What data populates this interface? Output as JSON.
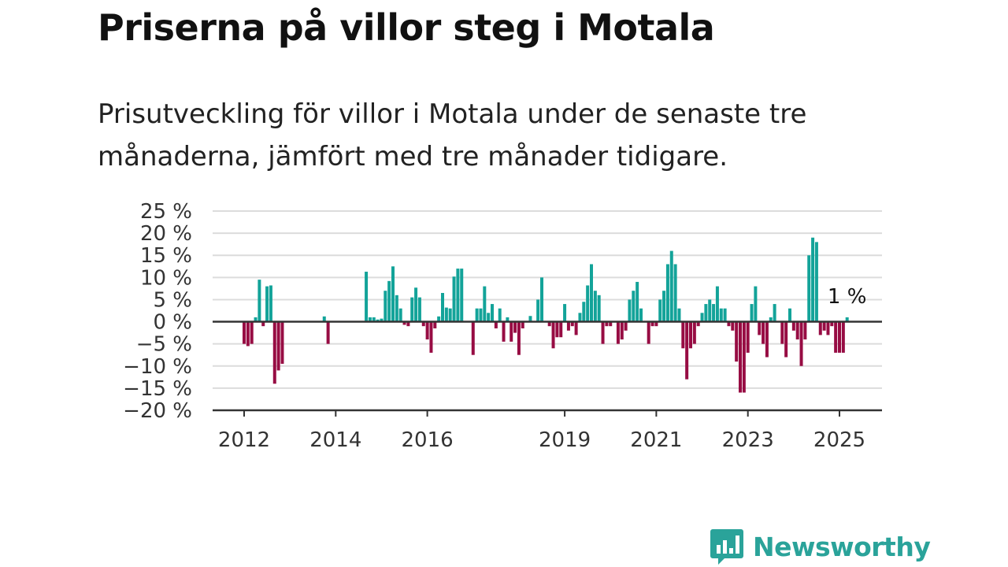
{
  "title": "Priserna på villor steg i Motala",
  "subtitle": "Prisutveckling för villor i Motala under de senaste tre månaderna, jämfört med tre månader tidigare.",
  "brand": {
    "name": "Newsworthy",
    "color": "#2aa39a",
    "icon": "bar-chart-speech-bubble-icon"
  },
  "chart_data": {
    "type": "bar",
    "title": "",
    "xlabel": "",
    "ylabel": "",
    "unit": "%",
    "ylim": [
      -20,
      25
    ],
    "grid": true,
    "colors": {
      "positive": "#13a399",
      "negative": "#970c43"
    },
    "y_ticks": [
      {
        "value": 25,
        "label": "25 %"
      },
      {
        "value": 20,
        "label": "20 %"
      },
      {
        "value": 15,
        "label": "15 %"
      },
      {
        "value": 10,
        "label": "10 %"
      },
      {
        "value": 5,
        "label": "5 %"
      },
      {
        "value": 0,
        "label": "0 %"
      },
      {
        "value": -5,
        "label": "−5 %"
      },
      {
        "value": -10,
        "label": "−10 %"
      },
      {
        "value": -15,
        "label": "−15 %"
      },
      {
        "value": -20,
        "label": "−20 %"
      }
    ],
    "x_ticks": [
      {
        "value": "2012-01",
        "label": "2012"
      },
      {
        "value": "2014-01",
        "label": "2014"
      },
      {
        "value": "2016-01",
        "label": "2016"
      },
      {
        "value": "2019-01",
        "label": "2019"
      },
      {
        "value": "2021-01",
        "label": "2021"
      },
      {
        "value": "2023-01",
        "label": "2023"
      },
      {
        "value": "2025-01",
        "label": "2025"
      }
    ],
    "annotation": {
      "label": "1 %",
      "x": "2025-03",
      "value": 1
    },
    "series": [
      {
        "values": [
          [
            "2012-01",
            -5
          ],
          [
            "2012-02",
            -5.5
          ],
          [
            "2012-03",
            -5
          ],
          [
            "2012-04",
            1
          ],
          [
            "2012-05",
            9.5
          ],
          [
            "2012-06",
            -1
          ],
          [
            "2012-07",
            8
          ],
          [
            "2012-08",
            8.2
          ],
          [
            "2012-09",
            -14
          ],
          [
            "2012-10",
            -11
          ],
          [
            "2012-11",
            -9.5
          ],
          [
            "2013-10",
            1.2
          ],
          [
            "2013-11",
            -5
          ],
          [
            "2014-09",
            11.3
          ],
          [
            "2014-10",
            1
          ],
          [
            "2014-11",
            1
          ],
          [
            "2014-12",
            0.5
          ],
          [
            "2015-01",
            0.7
          ],
          [
            "2015-02",
            7
          ],
          [
            "2015-03",
            9.2
          ],
          [
            "2015-04",
            12.5
          ],
          [
            "2015-05",
            6
          ],
          [
            "2015-06",
            3
          ],
          [
            "2015-07",
            -0.7
          ],
          [
            "2015-08",
            -1
          ],
          [
            "2015-09",
            5.5
          ],
          [
            "2015-10",
            7.7
          ],
          [
            "2015-11",
            5.5
          ],
          [
            "2015-12",
            -1
          ],
          [
            "2016-01",
            -4
          ],
          [
            "2016-02",
            -7
          ],
          [
            "2016-03",
            -1.5
          ],
          [
            "2016-04",
            1.2
          ],
          [
            "2016-05",
            6.5
          ],
          [
            "2016-06",
            3.2
          ],
          [
            "2016-07",
            3
          ],
          [
            "2016-08",
            10.2
          ],
          [
            "2016-09",
            12
          ],
          [
            "2016-10",
            12
          ],
          [
            "2017-01",
            -7.5
          ],
          [
            "2017-02",
            3
          ],
          [
            "2017-03",
            3
          ],
          [
            "2017-04",
            8
          ],
          [
            "2017-05",
            2
          ],
          [
            "2017-06",
            4
          ],
          [
            "2017-07",
            -1.5
          ],
          [
            "2017-08",
            3
          ],
          [
            "2017-09",
            -4.5
          ],
          [
            "2017-10",
            1
          ],
          [
            "2017-11",
            -4.5
          ],
          [
            "2017-12",
            -2.5
          ],
          [
            "2018-01",
            -7.5
          ],
          [
            "2018-02",
            -1.5
          ],
          [
            "2018-04",
            1.3
          ],
          [
            "2018-06",
            5
          ],
          [
            "2018-07",
            10
          ],
          [
            "2018-09",
            -1
          ],
          [
            "2018-10",
            -6
          ],
          [
            "2018-11",
            -3.5
          ],
          [
            "2018-12",
            -3.5
          ],
          [
            "2019-01",
            4
          ],
          [
            "2019-02",
            -2
          ],
          [
            "2019-03",
            -1
          ],
          [
            "2019-04",
            -3
          ],
          [
            "2019-05",
            2
          ],
          [
            "2019-06",
            4.5
          ],
          [
            "2019-07",
            8.2
          ],
          [
            "2019-08",
            13
          ],
          [
            "2019-09",
            7
          ],
          [
            "2019-10",
            6
          ],
          [
            "2019-11",
            -5
          ],
          [
            "2019-12",
            -1
          ],
          [
            "2020-01",
            -1
          ],
          [
            "2020-03",
            -5
          ],
          [
            "2020-04",
            -4
          ],
          [
            "2020-05",
            -2
          ],
          [
            "2020-06",
            5
          ],
          [
            "2020-07",
            7
          ],
          [
            "2020-08",
            9
          ],
          [
            "2020-09",
            3
          ],
          [
            "2020-11",
            -5
          ],
          [
            "2020-12",
            -1
          ],
          [
            "2021-01",
            -1
          ],
          [
            "2021-02",
            5
          ],
          [
            "2021-03",
            7
          ],
          [
            "2021-04",
            13
          ],
          [
            "2021-05",
            16
          ],
          [
            "2021-06",
            13
          ],
          [
            "2021-07",
            3
          ],
          [
            "2021-08",
            -6
          ],
          [
            "2021-09",
            -13
          ],
          [
            "2021-10",
            -6
          ],
          [
            "2021-11",
            -5
          ],
          [
            "2021-12",
            -1
          ],
          [
            "2022-01",
            2
          ],
          [
            "2022-02",
            4
          ],
          [
            "2022-03",
            5
          ],
          [
            "2022-04",
            4
          ],
          [
            "2022-05",
            8
          ],
          [
            "2022-06",
            3
          ],
          [
            "2022-07",
            3
          ],
          [
            "2022-08",
            -1
          ],
          [
            "2022-09",
            -2
          ],
          [
            "2022-10",
            -9
          ],
          [
            "2022-11",
            -16
          ],
          [
            "2022-12",
            -16
          ],
          [
            "2023-01",
            -7
          ],
          [
            "2023-02",
            4
          ],
          [
            "2023-03",
            8
          ],
          [
            "2023-04",
            -3
          ],
          [
            "2023-05",
            -5
          ],
          [
            "2023-06",
            -8
          ],
          [
            "2023-07",
            1
          ],
          [
            "2023-08",
            4
          ],
          [
            "2023-10",
            -5
          ],
          [
            "2023-11",
            -8
          ],
          [
            "2023-12",
            3
          ],
          [
            "2024-01",
            -2
          ],
          [
            "2024-02",
            -4
          ],
          [
            "2024-03",
            -10
          ],
          [
            "2024-04",
            -4
          ],
          [
            "2024-05",
            15
          ],
          [
            "2024-06",
            19
          ],
          [
            "2024-07",
            18
          ],
          [
            "2024-08",
            -3
          ],
          [
            "2024-09",
            -2
          ],
          [
            "2024-10",
            -3
          ],
          [
            "2024-11",
            -1
          ],
          [
            "2024-12",
            -7
          ],
          [
            "2025-01",
            -7
          ],
          [
            "2025-02",
            -7
          ],
          [
            "2025-03",
            1
          ]
        ]
      }
    ]
  }
}
